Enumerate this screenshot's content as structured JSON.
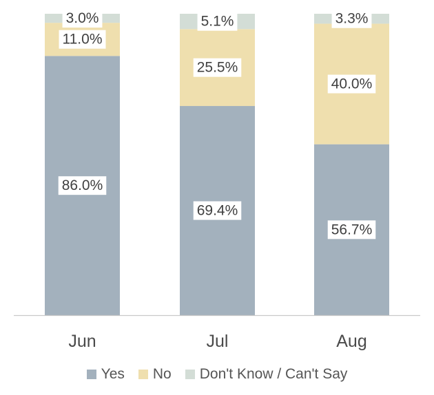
{
  "chart_data": {
    "type": "bar",
    "stacked": true,
    "categories": [
      "Jun",
      "Jul",
      "Aug"
    ],
    "series": [
      {
        "name": "Yes",
        "values": [
          86.0,
          69.4,
          56.7
        ],
        "labels": [
          "86.0%",
          "69.4%",
          "56.7%"
        ],
        "color": "#a3b1bd"
      },
      {
        "name": "No",
        "values": [
          11.0,
          25.5,
          40.0
        ],
        "labels": [
          "11.0%",
          "25.5%",
          "40.0%"
        ],
        "color": "#efdfae"
      },
      {
        "name": "Don't Know / Can't Say",
        "values": [
          3.0,
          5.1,
          3.3
        ],
        "labels": [
          "3.0%",
          "5.1%",
          "3.3%"
        ],
        "color": "#d3ddd6"
      }
    ],
    "ylim": [
      0,
      100
    ],
    "grid": false,
    "legend_position": "bottom"
  }
}
